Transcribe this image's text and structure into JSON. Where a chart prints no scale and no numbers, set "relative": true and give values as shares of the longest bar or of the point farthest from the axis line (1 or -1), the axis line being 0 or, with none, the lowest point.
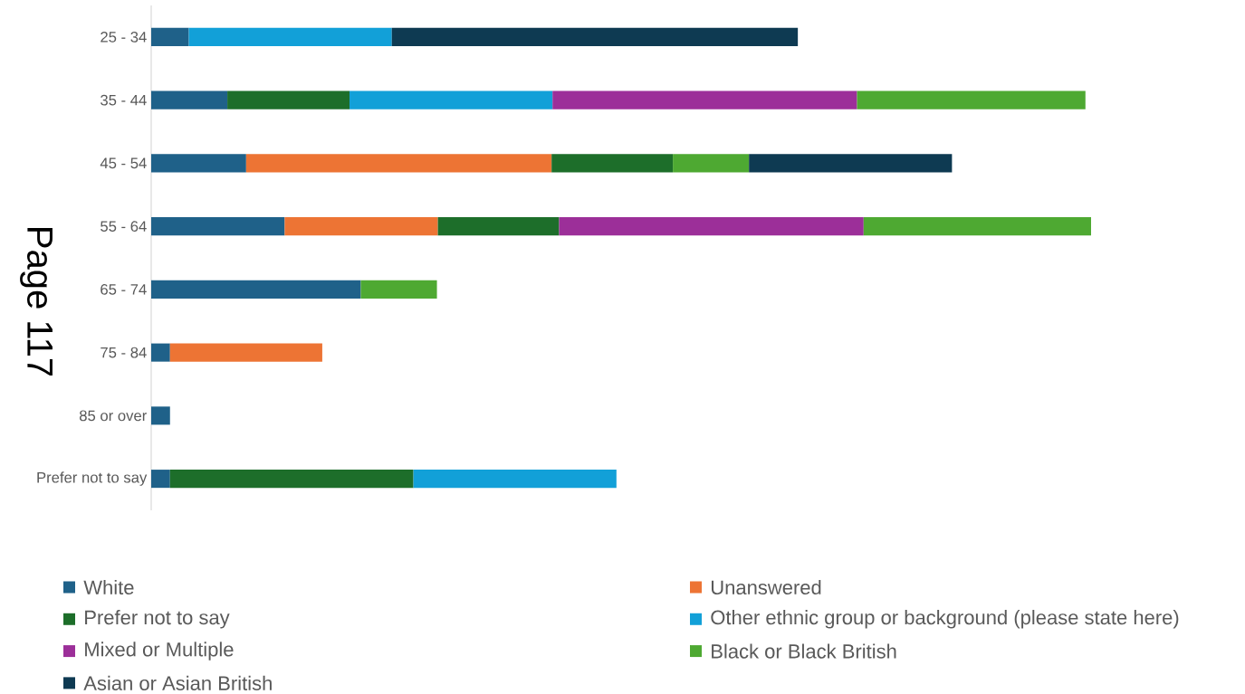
{
  "chart_data": {
    "type": "bar",
    "orientation": "horizontal",
    "stacked": true,
    "relative": true,
    "legend": "bottom",
    "categories": [
      "25 - 34",
      "35 - 44",
      "45 - 54",
      "55 - 64",
      "65 - 74",
      "75 - 84",
      "85 or over",
      "Prefer not to say"
    ],
    "series": [
      {
        "name": "White",
        "color": "#1f6189",
        "values": [
          0.04,
          0.081,
          0.101,
          0.142,
          0.223,
          0.02,
          0.02,
          0.02
        ]
      },
      {
        "name": "Unanswered",
        "color": "#ed7434",
        "values": [
          null,
          null,
          0.325,
          0.163,
          null,
          0.162,
          null,
          null
        ]
      },
      {
        "name": "Prefer not to say",
        "color": "#1d6e2a",
        "values": [
          null,
          0.13,
          0.129,
          0.129,
          null,
          null,
          null,
          0.259
        ]
      },
      {
        "name": "Other ethnic group or background (please state here)",
        "color": "#12a0d8",
        "values": [
          0.216,
          0.216,
          null,
          null,
          null,
          null,
          null,
          0.216
        ]
      },
      {
        "name": "Mixed or Multiple",
        "color": "#9c2f99",
        "values": [
          null,
          0.324,
          null,
          0.324,
          null,
          null,
          null,
          null
        ]
      },
      {
        "name": "Black or Black British",
        "color": "#4ea932",
        "values": [
          null,
          0.243,
          0.081,
          0.242,
          0.081,
          null,
          null,
          null
        ]
      },
      {
        "name": "Asian or Asian British",
        "color": "#0e3a52",
        "values": [
          0.432,
          null,
          0.216,
          null,
          null,
          null,
          null,
          null
        ]
      }
    ],
    "annotations": [
      "Page 117"
    ]
  }
}
